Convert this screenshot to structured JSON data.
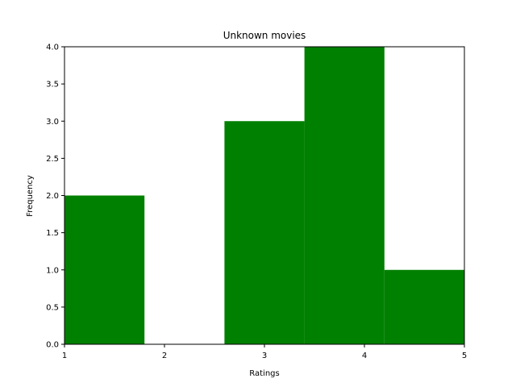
{
  "chart_data": {
    "type": "bar",
    "title": "Unknown movies",
    "xlabel": "Ratings",
    "ylabel": "Frequency",
    "bins": [
      {
        "x0": 1.0,
        "x1": 1.8,
        "value": 2
      },
      {
        "x0": 1.8,
        "x1": 2.6,
        "value": 0
      },
      {
        "x0": 2.6,
        "x1": 3.4,
        "value": 3
      },
      {
        "x0": 3.4,
        "x1": 4.2,
        "value": 4
      },
      {
        "x0": 4.2,
        "x1": 5.0,
        "value": 1
      }
    ],
    "xlim": [
      1,
      5
    ],
    "ylim": [
      0,
      4
    ],
    "xticks": [
      "1",
      "2",
      "3",
      "4",
      "5"
    ],
    "yticks": [
      "0.0",
      "0.5",
      "1.0",
      "1.5",
      "2.0",
      "2.5",
      "3.0",
      "3.5",
      "4.0"
    ],
    "bar_color": "#008000",
    "grid": false,
    "legend": "none"
  }
}
